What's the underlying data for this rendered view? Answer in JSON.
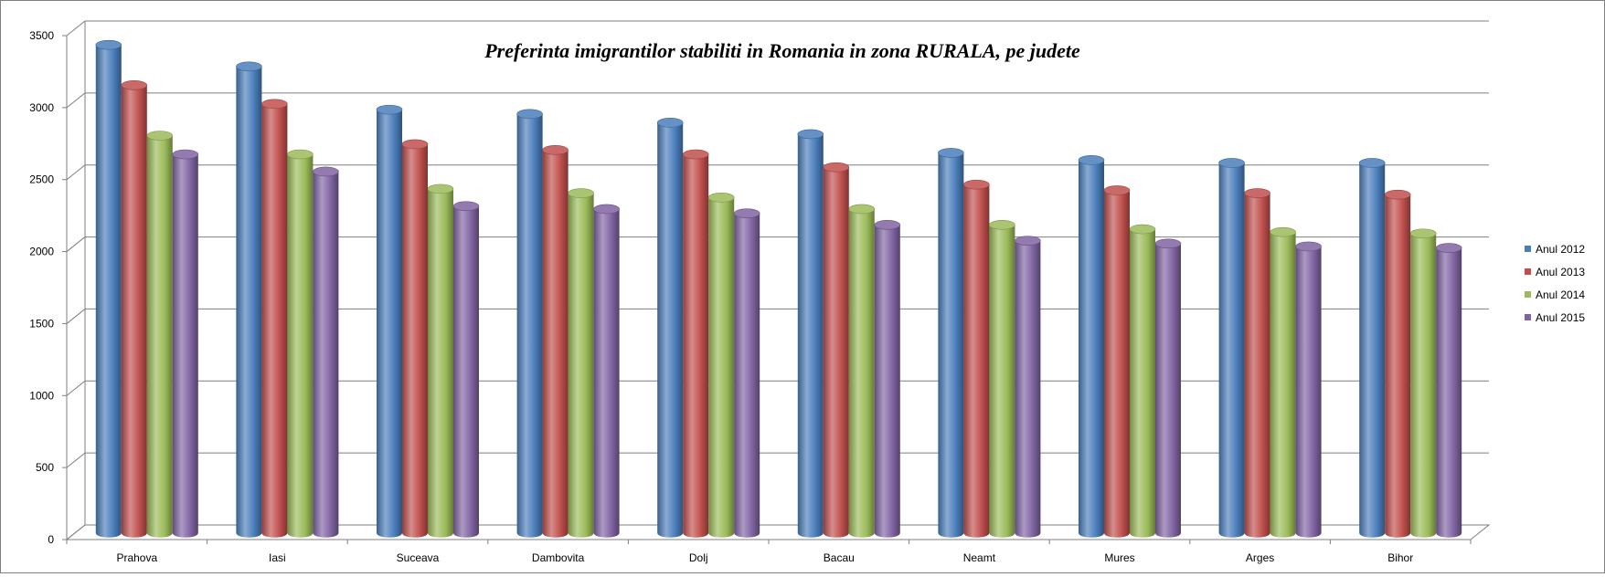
{
  "chart_data": {
    "type": "bar",
    "title": "Preferinta imigrantilor stabiliti in Romania in zona RURALA, pe judete",
    "xlabel": "",
    "ylabel": "",
    "ylim": [
      0,
      3500
    ],
    "yticks": [
      0,
      500,
      1000,
      1500,
      2000,
      2500,
      3000,
      3500
    ],
    "grid": true,
    "legend_position": "right",
    "categories": [
      "Prahova",
      "Iasi",
      "Suceava",
      "Dambovita",
      "Dolj",
      "Bacau",
      "Neamt",
      "Mures",
      "Arges",
      "Bihor"
    ],
    "series": [
      {
        "name": "Anul 2012",
        "color": "#4a7ebb",
        "values": [
          3390,
          3240,
          2940,
          2910,
          2850,
          2770,
          2640,
          2590,
          2570,
          2570
        ]
      },
      {
        "name": "Anul 2013",
        "color": "#c0504d",
        "values": [
          3110,
          2980,
          2700,
          2660,
          2630,
          2540,
          2420,
          2380,
          2360,
          2350
        ]
      },
      {
        "name": "Anul 2014",
        "color": "#9bbb59",
        "values": [
          2760,
          2630,
          2390,
          2360,
          2330,
          2250,
          2140,
          2110,
          2090,
          2080
        ]
      },
      {
        "name": "Anul 2015",
        "color": "#8064a2",
        "values": [
          2630,
          2510,
          2270,
          2250,
          2220,
          2140,
          2030,
          2010,
          1990,
          1980
        ]
      }
    ]
  }
}
